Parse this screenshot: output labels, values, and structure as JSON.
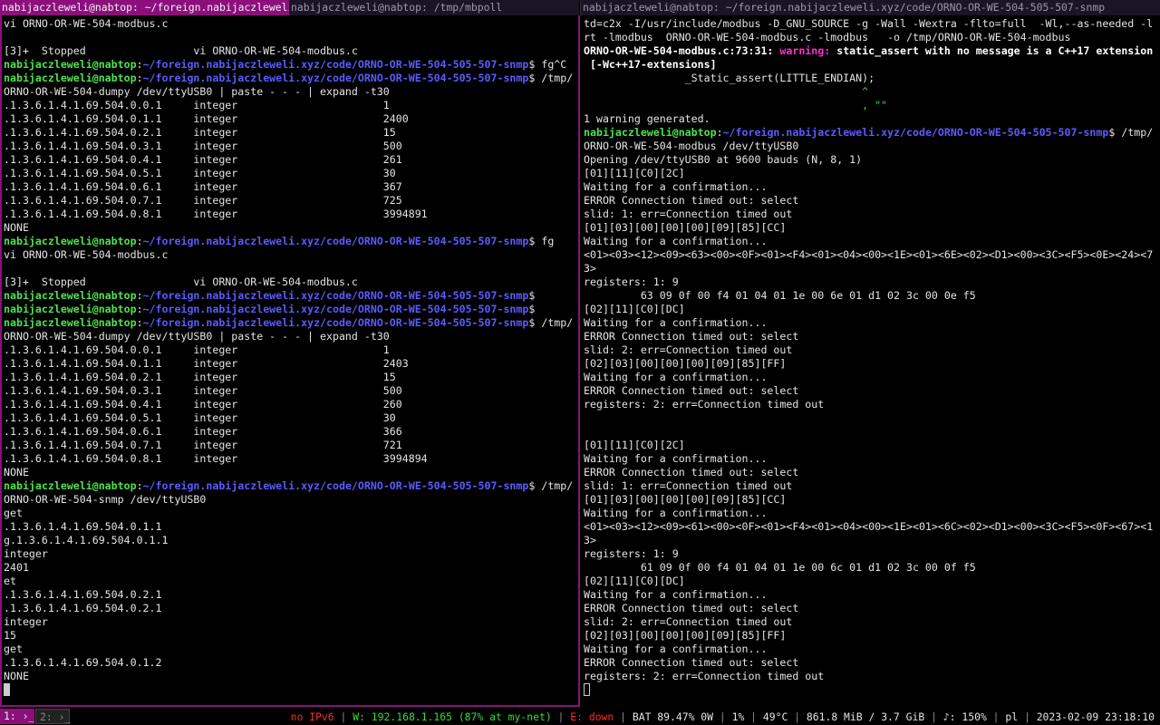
{
  "tabs": {
    "left_active": "nabijaczleweli@nabtop: ~/foreign.nabijaczleweli.xyz…",
    "left_inactive": "nabijaczleweli@nabtop: /tmp/mbpoll",
    "right": "nabijaczleweli@nabtop: ~/foreign.nabijaczleweli.xyz/code/ORNO-OR-WE-504-505-507-snmp"
  },
  "prompt": {
    "user": "nabijaczleweli@nabtop",
    "colon": ":",
    "path": "~/foreign.nabijaczleweli.xyz/code/ORNO-OR-WE-504-505-507-snmp",
    "dollar": "$"
  },
  "colors": {
    "accent": "#8c0f7c",
    "user": "#4fe34f",
    "path": "#5b5bff",
    "warning": "#ff2fd0",
    "error": "#ff2a2a",
    "ok": "#2fe02f"
  },
  "left": {
    "lines": [
      {
        "t": "vi ORNO-OR-WE-504-modbus.c"
      },
      {
        "t": ""
      },
      {
        "t": "[3]+  Stopped                 vi ORNO-OR-WE-504-modbus.c"
      },
      {
        "cmd": " fg^C"
      },
      {
        "cmd": " /tmp/"
      },
      {
        "t": "ORNO-OR-WE-504-dumpy /dev/ttyUSB0 | paste - - - | expand -t30"
      },
      {
        "t": ".1.3.6.1.4.1.69.504.0.0.1     integer                       1"
      },
      {
        "t": ".1.3.6.1.4.1.69.504.0.1.1     integer                       2400"
      },
      {
        "t": ".1.3.6.1.4.1.69.504.0.2.1     integer                       15"
      },
      {
        "t": ".1.3.6.1.4.1.69.504.0.3.1     integer                       500"
      },
      {
        "t": ".1.3.6.1.4.1.69.504.0.4.1     integer                       261"
      },
      {
        "t": ".1.3.6.1.4.1.69.504.0.5.1     integer                       30"
      },
      {
        "t": ".1.3.6.1.4.1.69.504.0.6.1     integer                       367"
      },
      {
        "t": ".1.3.6.1.4.1.69.504.0.7.1     integer                       725"
      },
      {
        "t": ".1.3.6.1.4.1.69.504.0.8.1     integer                       3994891"
      },
      {
        "t": "NONE"
      },
      {
        "cmd": " fg"
      },
      {
        "t": "vi ORNO-OR-WE-504-modbus.c"
      },
      {
        "t": ""
      },
      {
        "t": "[3]+  Stopped                 vi ORNO-OR-WE-504-modbus.c"
      },
      {
        "cmd": ""
      },
      {
        "cmd": ""
      },
      {
        "cmd": " /tmp/"
      },
      {
        "t": "ORNO-OR-WE-504-dumpy /dev/ttyUSB0 | paste - - - | expand -t30"
      },
      {
        "t": ".1.3.6.1.4.1.69.504.0.0.1     integer                       1"
      },
      {
        "t": ".1.3.6.1.4.1.69.504.0.1.1     integer                       2403"
      },
      {
        "t": ".1.3.6.1.4.1.69.504.0.2.1     integer                       15"
      },
      {
        "t": ".1.3.6.1.4.1.69.504.0.3.1     integer                       500"
      },
      {
        "t": ".1.3.6.1.4.1.69.504.0.4.1     integer                       260"
      },
      {
        "t": ".1.3.6.1.4.1.69.504.0.5.1     integer                       30"
      },
      {
        "t": ".1.3.6.1.4.1.69.504.0.6.1     integer                       366"
      },
      {
        "t": ".1.3.6.1.4.1.69.504.0.7.1     integer                       721"
      },
      {
        "t": ".1.3.6.1.4.1.69.504.0.8.1     integer                       3994894"
      },
      {
        "t": "NONE"
      },
      {
        "cmd": " /tmp/"
      },
      {
        "t": "ORNO-OR-WE-504-snmp /dev/ttyUSB0"
      },
      {
        "t": "get"
      },
      {
        "t": ".1.3.6.1.4.1.69.504.0.1.1"
      },
      {
        "t": "g.1.3.6.1.4.1.69.504.0.1.1"
      },
      {
        "t": "integer"
      },
      {
        "t": "2401"
      },
      {
        "t": "et"
      },
      {
        "t": ".1.3.6.1.4.1.69.504.0.2.1"
      },
      {
        "t": ".1.3.6.1.4.1.69.504.0.2.1"
      },
      {
        "t": "integer"
      },
      {
        "t": "15"
      },
      {
        "t": "get"
      },
      {
        "t": ".1.3.6.1.4.1.69.504.0.1.2"
      },
      {
        "t": "NONE"
      },
      {
        "cursor": true
      }
    ]
  },
  "right": {
    "lines": [
      {
        "t": "td=c2x -I/usr/include/modbus -D_GNU_SOURCE -g -Wall -Wextra -flto=full  -Wl,--as-needed -l"
      },
      {
        "t": "rt -lmodbus  ORNO-OR-WE-504-modbus.c -lmodbus   -o /tmp/ORNO-OR-WE-504-modbus"
      },
      {
        "segs": [
          {
            "c": "bold",
            "t": "ORNO-OR-WE-504-modbus.c:73:31: "
          },
          {
            "c": "warn",
            "t": "warning:"
          },
          {
            "c": "bold",
            "t": " static_assert with no message is a C++17 extension"
          }
        ]
      },
      {
        "segs": [
          {
            "c": "bold",
            "t": " [-Wc++17-extensions]"
          }
        ]
      },
      {
        "t": "                _Static_assert(LITTLE_ENDIAN);"
      },
      {
        "segs": [
          {
            "c": "green",
            "t": "                                            ^"
          }
        ]
      },
      {
        "segs": [
          {
            "c": "green",
            "t": "                                            , \"\""
          }
        ]
      },
      {
        "t": "1 warning generated."
      },
      {
        "cmd": " /tmp/"
      },
      {
        "t": "ORNO-OR-WE-504-modbus /dev/ttyUSB0"
      },
      {
        "t": "Opening /dev/ttyUSB0 at 9600 bauds (N, 8, 1)"
      },
      {
        "t": "[01][11][C0][2C]"
      },
      {
        "t": "Waiting for a confirmation..."
      },
      {
        "t": "ERROR Connection timed out: select"
      },
      {
        "t": "slid: 1: err=Connection timed out"
      },
      {
        "t": "[01][03][00][00][00][09][85][CC]"
      },
      {
        "t": "Waiting for a confirmation..."
      },
      {
        "t": "<01><03><12><09><63><00><0F><01><F4><01><04><00><1E><01><6E><02><D1><00><3C><F5><0E><24><7"
      },
      {
        "t": "3>"
      },
      {
        "t": "registers: 1: 9"
      },
      {
        "t": "         63 09 0f 00 f4 01 04 01 1e 00 6e 01 d1 02 3c 00 0e f5"
      },
      {
        "t": "[02][11][C0][DC]"
      },
      {
        "t": "Waiting for a confirmation..."
      },
      {
        "t": "ERROR Connection timed out: select"
      },
      {
        "t": "slid: 2: err=Connection timed out"
      },
      {
        "t": "[02][03][00][00][00][09][85][FF]"
      },
      {
        "t": "Waiting for a confirmation..."
      },
      {
        "t": "ERROR Connection timed out: select"
      },
      {
        "t": "registers: 2: err=Connection timed out"
      },
      {
        "t": ""
      },
      {
        "t": ""
      },
      {
        "t": "[01][11][C0][2C]"
      },
      {
        "t": "Waiting for a confirmation..."
      },
      {
        "t": "ERROR Connection timed out: select"
      },
      {
        "t": "slid: 1: err=Connection timed out"
      },
      {
        "t": "[01][03][00][00][00][09][85][CC]"
      },
      {
        "t": "Waiting for a confirmation..."
      },
      {
        "t": "<01><03><12><09><61><00><0F><01><F4><01><04><00><1E><01><6C><02><D1><00><3C><F5><0F><67><1"
      },
      {
        "t": "3>"
      },
      {
        "t": "registers: 1: 9"
      },
      {
        "t": "         61 09 0f 00 f4 01 04 01 1e 00 6c 01 d1 02 3c 00 0f f5"
      },
      {
        "t": "[02][11][C0][DC]"
      },
      {
        "t": "Waiting for a confirmation..."
      },
      {
        "t": "ERROR Connection timed out: select"
      },
      {
        "t": "slid: 2: err=Connection timed out"
      },
      {
        "t": "[02][03][00][00][00][09][85][FF]"
      },
      {
        "t": "Waiting for a confirmation..."
      },
      {
        "t": "ERROR Connection timed out: select"
      },
      {
        "t": "registers: 2: err=Connection timed out"
      },
      {
        "cursor": true
      }
    ]
  },
  "bar": {
    "workspaces": [
      {
        "label": "1: ›_"
      },
      {
        "label": "2: ›_"
      }
    ],
    "status": [
      {
        "name": "ipv6",
        "t": "no IPv6",
        "color": "#ff2a2a"
      },
      {
        "name": "wifi",
        "t": "W: 192.168.1.165 (87% at my-net)",
        "color": "#2fe02f"
      },
      {
        "name": "ethernet",
        "t": "E: down",
        "color": "#ff2a2a"
      },
      {
        "name": "battery",
        "t": "BAT 89.47% 0W",
        "color": "#e4e4e4"
      },
      {
        "name": "cpu",
        "t": "1%",
        "color": "#e4e4e4"
      },
      {
        "name": "temperature",
        "t": "49°C",
        "color": "#e4e4e4"
      },
      {
        "name": "memory",
        "t": "861.8 MiB / 3.7 GiB",
        "color": "#e4e4e4"
      },
      {
        "name": "volume",
        "t": "♪: 150%",
        "color": "#e4e4e4"
      },
      {
        "name": "keyboard-layout",
        "t": "pl",
        "color": "#e4e4e4"
      },
      {
        "name": "clock",
        "t": "2023-02-09 23:18:10",
        "color": "#e4e4e4"
      }
    ],
    "separator": "|"
  }
}
